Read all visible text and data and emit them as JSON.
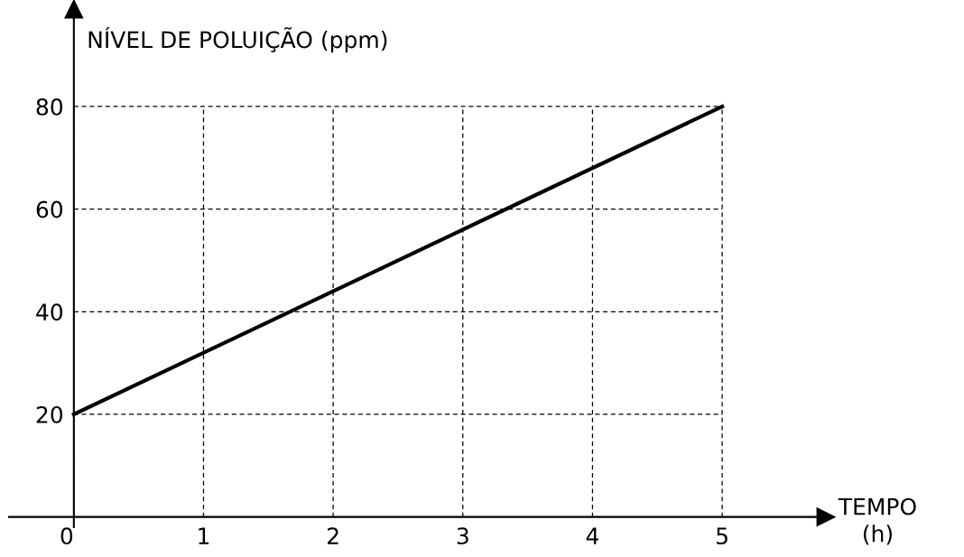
{
  "chart_data": {
    "type": "line",
    "xlabel": "TEMPO\n(h)",
    "ylabel": "NÍVEL DE POLUIÇÃO (ppm)",
    "x": [
      0,
      5
    ],
    "series": [
      {
        "color": "#000000",
        "values": [
          20,
          80
        ]
      }
    ],
    "xlim": [
      -0.5,
      5.8
    ],
    "ylim": [
      -2,
      99
    ],
    "xticks": [
      0,
      1,
      2,
      3,
      4,
      5
    ],
    "yticks": [
      20,
      40,
      60,
      80
    ],
    "grid": true,
    "line_style": "solid",
    "marker": "none"
  }
}
